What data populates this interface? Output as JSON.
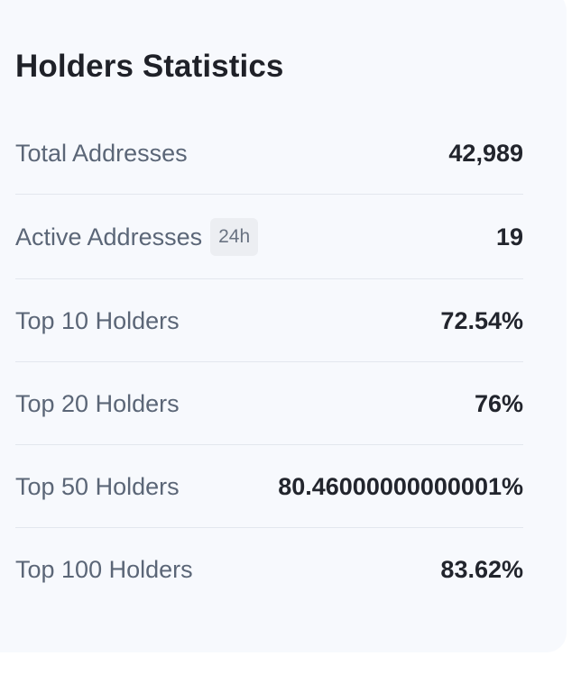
{
  "card": {
    "title": "Holders Statistics",
    "rows": [
      {
        "label": "Total Addresses",
        "value": "42,989"
      },
      {
        "label": "Active Addresses",
        "badge": "24h",
        "value": "19"
      },
      {
        "label": "Top 10 Holders",
        "value": "72.54%"
      },
      {
        "label": "Top 20 Holders",
        "value": "76%"
      },
      {
        "label": "Top 50 Holders",
        "value": "80.46000000000001%"
      },
      {
        "label": "Top 100 Holders",
        "value": "83.62%"
      }
    ]
  }
}
